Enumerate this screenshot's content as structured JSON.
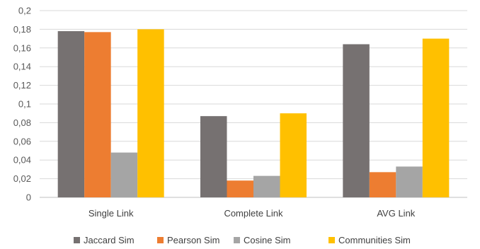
{
  "chart_data": {
    "type": "bar",
    "title": "",
    "xlabel": "",
    "ylabel": "",
    "categories": [
      "Single Link",
      "Complete Link",
      "AVG Link"
    ],
    "series": [
      {
        "name": "Jaccard Sim",
        "color": "#767171",
        "values": [
          0.178,
          0.087,
          0.164
        ]
      },
      {
        "name": "Pearson Sim",
        "color": "#ED7D31",
        "values": [
          0.177,
          0.018,
          0.027
        ]
      },
      {
        "name": "Cosine Sim",
        "color": "#A5A5A5",
        "values": [
          0.048,
          0.023,
          0.033
        ]
      },
      {
        "name": "Communities Sim",
        "color": "#FFC000",
        "values": [
          0.18,
          0.09,
          0.17
        ]
      }
    ],
    "ylim": [
      0,
      0.2
    ],
    "yticks": [
      "0",
      "0,02",
      "0,04",
      "0,06",
      "0,08",
      "0,1",
      "0,12",
      "0,14",
      "0,16",
      "0,18",
      "0,2"
    ],
    "grid": true,
    "legend_position": "bottom"
  }
}
